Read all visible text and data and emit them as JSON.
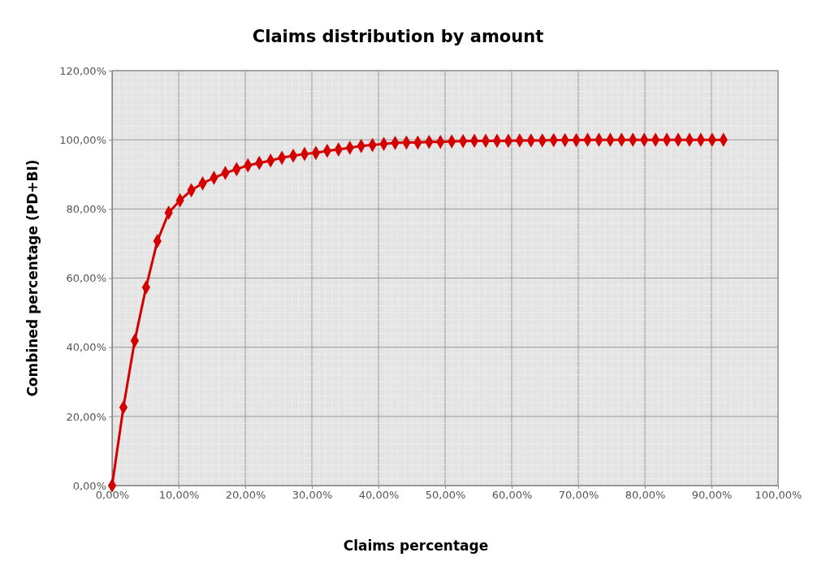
{
  "chart_data": {
    "type": "line",
    "title": "Claims distribution by amount",
    "xlabel": "Claims percentage",
    "ylabel": "Combined percentage (PD+BI)",
    "x": [
      0,
      1.7,
      3.4,
      5.1,
      6.8,
      8.5,
      10.2,
      11.9,
      13.6,
      15.3,
      17,
      18.7,
      20.4,
      22.1,
      23.8,
      25.5,
      27.2,
      28.9,
      30.6,
      32.3,
      34,
      35.7,
      37.4,
      39.1,
      40.8,
      42.5,
      44.2,
      45.9,
      47.6,
      49.3,
      51,
      52.7,
      54.4,
      56.1,
      57.8,
      59.5,
      61.2,
      62.9,
      64.6,
      66.3,
      68,
      69.7,
      71.4,
      73.1,
      74.8,
      76.5,
      78.2,
      79.9,
      81.6,
      83.3,
      85,
      86.7,
      88.4,
      90.1,
      91.8
    ],
    "series": [
      {
        "color": "#d40000",
        "values": [
          0,
          22.6,
          41.9,
          57.3,
          70.7,
          78.9,
          82.5,
          85.4,
          87.4,
          89.0,
          90.4,
          91.5,
          92.6,
          93.3,
          94.0,
          94.8,
          95.4,
          95.9,
          96.2,
          96.8,
          97.2,
          97.7,
          98.2,
          98.5,
          98.8,
          99.1,
          99.2,
          99.2,
          99.4,
          99.4,
          99.5,
          99.6,
          99.7,
          99.7,
          99.7,
          99.7,
          99.8,
          99.8,
          99.8,
          99.9,
          99.9,
          99.9,
          100,
          100,
          100,
          100,
          100,
          100,
          100,
          100,
          100,
          100,
          100,
          100,
          100
        ]
      }
    ],
    "xlim": [
      0,
      100
    ],
    "ylim": [
      0,
      120
    ],
    "xticks": [
      {
        "value": 0,
        "label": "0,00%"
      },
      {
        "value": 10,
        "label": "10,00%"
      },
      {
        "value": 20,
        "label": "20,00%"
      },
      {
        "value": 30,
        "label": "30,00%"
      },
      {
        "value": 40,
        "label": "40,00%"
      },
      {
        "value": 50,
        "label": "50,00%"
      },
      {
        "value": 60,
        "label": "60,00%"
      },
      {
        "value": 70,
        "label": "70,00%"
      },
      {
        "value": 80,
        "label": "80,00%"
      },
      {
        "value": 90,
        "label": "90,00%"
      },
      {
        "value": 100,
        "label": "100,00%"
      }
    ],
    "yticks": [
      {
        "value": 0,
        "label": "0,00%"
      },
      {
        "value": 20,
        "label": "20,00%"
      },
      {
        "value": 40,
        "label": "40,00%"
      },
      {
        "value": 60,
        "label": "60,00%"
      },
      {
        "value": 80,
        "label": "80,00%"
      },
      {
        "value": 100,
        "label": "100,00%"
      },
      {
        "value": 120,
        "label": "120,00%"
      }
    ],
    "grid": true,
    "marker": "diamond",
    "line_style": "solid"
  }
}
